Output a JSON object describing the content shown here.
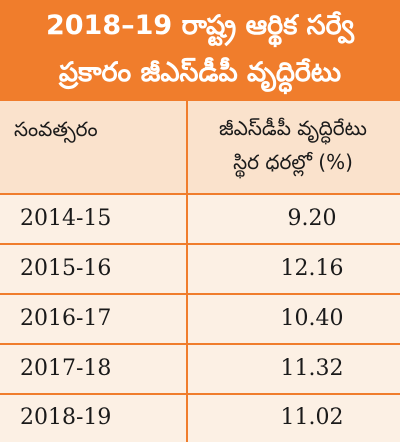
{
  "banner": {
    "title_line1": "2018–19 రాష్ట్ర ఆర్థిక సర్వే",
    "title_line2": "ప్రకారం జీఎస్‌డీపీ వృద్ధిరేటు"
  },
  "table": {
    "headers": {
      "year": "సంవత్సరం",
      "rate_line1": "జీఎస్‌డీపీ వృద్ధిరేటు",
      "rate_line2": "స్థిర ధరల్లో (%)"
    },
    "rows": [
      {
        "year": "2014-15",
        "value": "9.20"
      },
      {
        "year": "2015-16",
        "value": "12.16"
      },
      {
        "year": "2016-17",
        "value": "10.40"
      },
      {
        "year": "2017-18",
        "value": "11.32"
      },
      {
        "year": "2018-19",
        "value": "11.02"
      }
    ]
  },
  "colors": {
    "accent": "#f07d2c",
    "header_bg": "#fae2cc",
    "body_bg": "#fcf0e4"
  }
}
